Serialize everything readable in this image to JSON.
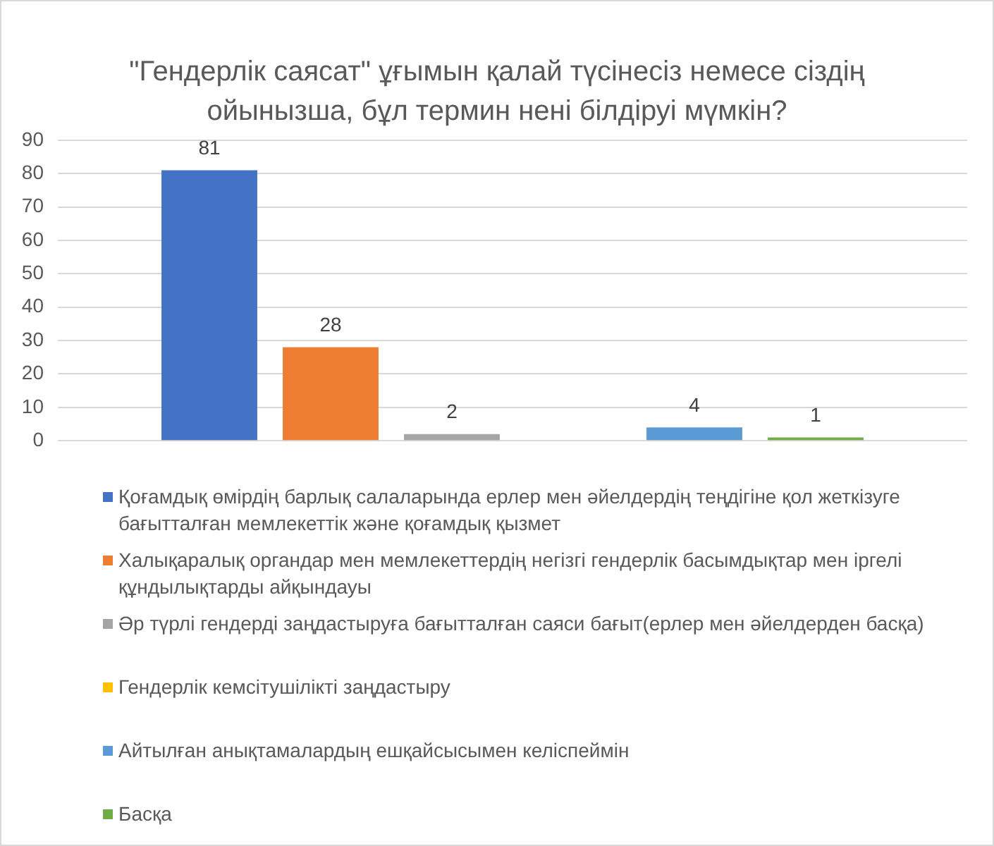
{
  "chart_data": {
    "type": "bar",
    "title": "\"Гендерлік саясат\" ұғымын қалай түсінесіз немесе сіздің ойынызша, бұл термин нені білдіруі мүмкін?",
    "categories": [
      null
    ],
    "series": [
      {
        "name": "Қоғамдық өмірдің барлық салаларында ерлер мен әйелдердің теңдігіне қол жеткізуге бағытталған мемлекеттік және қоғамдық қызмет",
        "color": "#4472c4",
        "values": [
          81
        ]
      },
      {
        "name": "Халықаралық органдар мен мемлекеттердің негізгі гендерлік басымдықтар мен іргелі құндылықтарды айқындауы",
        "color": "#ed7d31",
        "values": [
          28
        ]
      },
      {
        "name": "Әр түрлі гендерді заңдастыруға бағытталған саяси бағыт(ерлер мен әйелдерден басқа)",
        "color": "#a5a5a5",
        "values": [
          2
        ]
      },
      {
        "name": "Гендерлік кемсітушілікті заңдастыру",
        "color": "#ffc000",
        "values": [
          null
        ]
      },
      {
        "name": "Айтылған анықтамалардың ешқайсысымен келіспеймін",
        "color": "#5b9bd5",
        "values": [
          4
        ]
      },
      {
        "name": "Басқа",
        "color": "#70ad47",
        "values": [
          1
        ]
      }
    ],
    "ylim": [
      0,
      90
    ],
    "yticks": [
      0,
      10,
      20,
      30,
      40,
      50,
      60,
      70,
      80,
      90
    ],
    "grid": "y",
    "legend": "bottom",
    "data_labels": true
  }
}
